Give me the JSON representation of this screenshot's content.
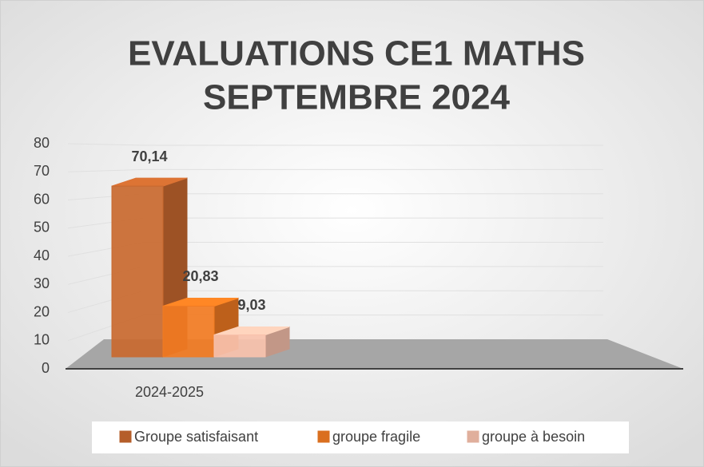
{
  "chart_data": {
    "type": "bar",
    "title": [
      "EVALUATIONS CE1 MATHS",
      "SEPTEMBRE 2024"
    ],
    "categories": [
      "2024-2025"
    ],
    "series": [
      {
        "name": "Groupe satisfaisant",
        "color": "#c9692f",
        "values": [
          70.14
        ],
        "value_labels": [
          "70,14"
        ]
      },
      {
        "name": "groupe fragile",
        "color": "#f27b22",
        "values": [
          20.83
        ],
        "value_labels": [
          "20,83"
        ]
      },
      {
        "name": "groupe à besoin",
        "color": "#f9c2ad",
        "values": [
          9.03
        ],
        "value_labels": [
          "9,03"
        ]
      }
    ],
    "ylim": [
      0,
      80
    ],
    "yticks": [
      0,
      10,
      20,
      30,
      40,
      50,
      60,
      70,
      80
    ],
    "grid": true,
    "legend": "bottom"
  }
}
